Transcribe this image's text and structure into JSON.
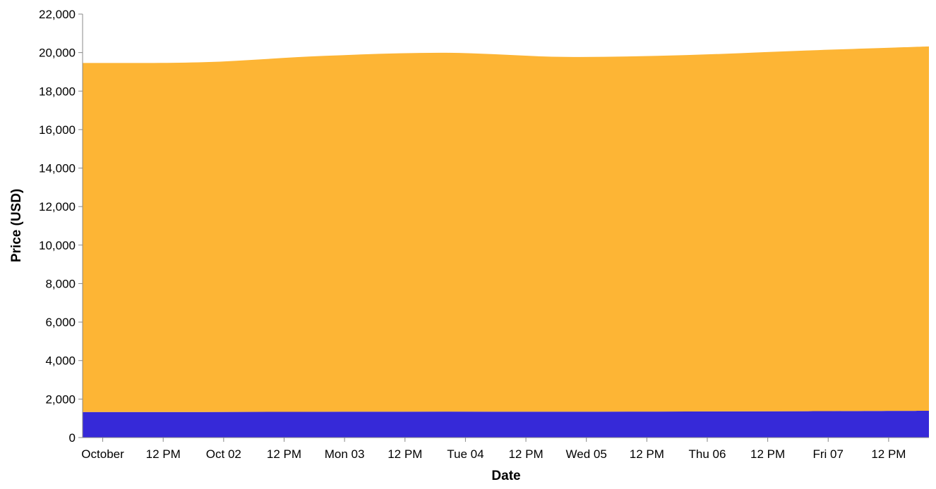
{
  "chart_data": {
    "type": "area",
    "stacked": true,
    "xlabel": "Date",
    "ylabel": "Price (USD)",
    "ylim": [
      0,
      22000
    ],
    "xlim": [
      "2022-09-30T20:00",
      "2022-10-07T20:00"
    ],
    "grid": false,
    "legend": "none",
    "y_ticks": [
      {
        "value": 0,
        "label": "0"
      },
      {
        "value": 2000,
        "label": "2,000"
      },
      {
        "value": 4000,
        "label": "4,000"
      },
      {
        "value": 6000,
        "label": "6,000"
      },
      {
        "value": 8000,
        "label": "8,000"
      },
      {
        "value": 10000,
        "label": "10,000"
      },
      {
        "value": 12000,
        "label": "12,000"
      },
      {
        "value": 14000,
        "label": "14,000"
      },
      {
        "value": 16000,
        "label": "16,000"
      },
      {
        "value": 18000,
        "label": "18,000"
      },
      {
        "value": 20000,
        "label": "20,000"
      },
      {
        "value": 22000,
        "label": "22,000"
      }
    ],
    "x_ticks": [
      {
        "value": "2022-10-01T00:00",
        "label": "October"
      },
      {
        "value": "2022-10-01T12:00",
        "label": "12 PM"
      },
      {
        "value": "2022-10-02T00:00",
        "label": "Oct 02"
      },
      {
        "value": "2022-10-02T12:00",
        "label": "12 PM"
      },
      {
        "value": "2022-10-03T00:00",
        "label": "Mon 03"
      },
      {
        "value": "2022-10-03T12:00",
        "label": "12 PM"
      },
      {
        "value": "2022-10-04T00:00",
        "label": "Tue 04"
      },
      {
        "value": "2022-10-04T12:00",
        "label": "12 PM"
      },
      {
        "value": "2022-10-05T00:00",
        "label": "Wed 05"
      },
      {
        "value": "2022-10-05T12:00",
        "label": "12 PM"
      },
      {
        "value": "2022-10-06T00:00",
        "label": "Thu 06"
      },
      {
        "value": "2022-10-06T12:00",
        "label": "12 PM"
      },
      {
        "value": "2022-10-07T00:00",
        "label": "Fri 07"
      },
      {
        "value": "2022-10-07T12:00",
        "label": "12 PM"
      }
    ],
    "x": [
      "2022-09-30T20:00",
      "2022-10-01T20:00",
      "2022-10-02T20:00",
      "2022-10-03T20:00",
      "2022-10-04T20:00",
      "2022-10-05T20:00",
      "2022-10-06T20:00",
      "2022-10-07T20:00"
    ],
    "series": [
      {
        "color": "#3629d8",
        "values": [
          1330,
          1330,
          1340,
          1350,
          1345,
          1355,
          1370,
          1390
        ]
      },
      {
        "color": "#fdb535",
        "values": [
          18130,
          18170,
          18490,
          18640,
          18430,
          18520,
          18740,
          18930
        ]
      }
    ]
  }
}
